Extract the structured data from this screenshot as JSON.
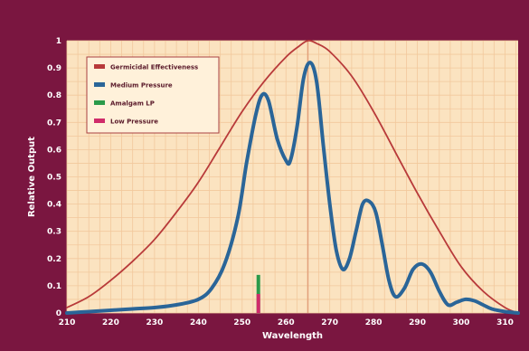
{
  "colors": {
    "frame": "#7a1640",
    "plot_bg": "#fbe3c0",
    "grid": "#f2c89c",
    "germicidal": "#b83a3a",
    "medium_pressure": "#2a6598",
    "amalgam": "#2b9a4a",
    "low_pressure": "#d02b6a",
    "peak_line": "#e2a07a"
  },
  "chart_data": {
    "type": "line",
    "xlabel": "Wavelength",
    "ylabel": "Relative Output",
    "xlim": [
      210,
      313
    ],
    "ylim": [
      0,
      1
    ],
    "xticks": [
      210,
      220,
      230,
      240,
      250,
      260,
      270,
      280,
      290,
      300,
      310
    ],
    "yticks": [
      {
        "value": 0,
        "label": "0"
      },
      {
        "value": 0.1,
        "label": "0.1"
      },
      {
        "value": 0.2,
        "label": "0.2"
      },
      {
        "value": 0.3,
        "label": "0.3"
      },
      {
        "value": 0.4,
        "label": "0.4"
      },
      {
        "value": 0.5,
        "label": "0.5"
      },
      {
        "value": 0.6,
        "label": "0.6"
      },
      {
        "value": 0.7,
        "label": "0.7"
      },
      {
        "value": 0.8,
        "label": "0.8"
      },
      {
        "value": 0.9,
        "label": "0.9"
      },
      {
        "value": 1,
        "label": "1"
      }
    ],
    "grid": true,
    "legend_position": "top-left",
    "legend": [
      {
        "label": "Germicidal Effectiveness",
        "color": "#b83a3a"
      },
      {
        "label": "Medium Pressure",
        "color": "#2a6598"
      },
      {
        "label": "Amalgam LP",
        "color": "#2b9a4a"
      },
      {
        "label": "Low Pressure",
        "color": "#d02b6a"
      }
    ],
    "series": [
      {
        "name": "Germicidal Effectiveness",
        "color": "#b83a3a",
        "points": [
          [
            210,
            0.02
          ],
          [
            215,
            0.06
          ],
          [
            220,
            0.12
          ],
          [
            225,
            0.19
          ],
          [
            230,
            0.27
          ],
          [
            235,
            0.37
          ],
          [
            240,
            0.48
          ],
          [
            245,
            0.61
          ],
          [
            250,
            0.74
          ],
          [
            255,
            0.85
          ],
          [
            260,
            0.94
          ],
          [
            263,
            0.98
          ],
          [
            265,
            1.0
          ],
          [
            267,
            0.99
          ],
          [
            270,
            0.96
          ],
          [
            275,
            0.87
          ],
          [
            280,
            0.74
          ],
          [
            285,
            0.59
          ],
          [
            290,
            0.44
          ],
          [
            295,
            0.3
          ],
          [
            300,
            0.17
          ],
          [
            305,
            0.08
          ],
          [
            310,
            0.02
          ],
          [
            313,
            0.0
          ]
        ]
      },
      {
        "name": "Medium Pressure",
        "color": "#2a6598",
        "points": [
          [
            210,
            0.0
          ],
          [
            215,
            0.005
          ],
          [
            220,
            0.01
          ],
          [
            225,
            0.015
          ],
          [
            230,
            0.02
          ],
          [
            235,
            0.03
          ],
          [
            240,
            0.05
          ],
          [
            243,
            0.09
          ],
          [
            246,
            0.18
          ],
          [
            249,
            0.35
          ],
          [
            251,
            0.55
          ],
          [
            253,
            0.72
          ],
          [
            254.5,
            0.8
          ],
          [
            256,
            0.78
          ],
          [
            258,
            0.64
          ],
          [
            260,
            0.56
          ],
          [
            261,
            0.56
          ],
          [
            262.5,
            0.68
          ],
          [
            264,
            0.86
          ],
          [
            265.5,
            0.92
          ],
          [
            267,
            0.85
          ],
          [
            268.5,
            0.62
          ],
          [
            270,
            0.4
          ],
          [
            271.5,
            0.23
          ],
          [
            273,
            0.16
          ],
          [
            274.5,
            0.2
          ],
          [
            276,
            0.3
          ],
          [
            277.5,
            0.4
          ],
          [
            279,
            0.41
          ],
          [
            280.5,
            0.37
          ],
          [
            282,
            0.25
          ],
          [
            283.5,
            0.12
          ],
          [
            285,
            0.06
          ],
          [
            287,
            0.09
          ],
          [
            289,
            0.16
          ],
          [
            291,
            0.18
          ],
          [
            293,
            0.15
          ],
          [
            295,
            0.08
          ],
          [
            297,
            0.03
          ],
          [
            299,
            0.04
          ],
          [
            301,
            0.05
          ],
          [
            303,
            0.045
          ],
          [
            305,
            0.03
          ],
          [
            307,
            0.015
          ],
          [
            310,
            0.005
          ],
          [
            313,
            0.0
          ]
        ]
      }
    ],
    "bars": [
      {
        "name": "Amalgam LP",
        "x": 253.7,
        "value": 0.14,
        "color": "#2b9a4a"
      },
      {
        "name": "Low Pressure",
        "x": 253.7,
        "value": 0.07,
        "color": "#d02b6a"
      }
    ],
    "reference_line": {
      "x": 265,
      "color": "#e2a07a"
    }
  }
}
